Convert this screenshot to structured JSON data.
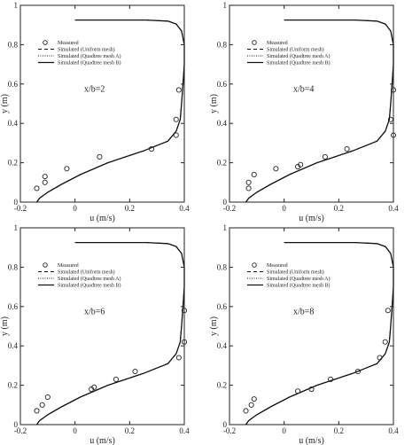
{
  "chart_data": [
    {
      "type": "line",
      "annotation": "x/b=2",
      "xlabel": "u (m/s)",
      "ylabel": "y (m)",
      "xlim": [
        -0.2,
        0.4
      ],
      "ylim": [
        0,
        1
      ],
      "x_ticks": [
        "-0.2",
        "0",
        "0.2",
        "0.4"
      ],
      "y_ticks": [
        "0",
        "0.2",
        "0.4",
        "0.6",
        "0.8",
        "1"
      ],
      "legend": [
        "Measured",
        "Simulated (Uniform mesh)",
        "Simulated (Quadtree mesh A)",
        "Simulated (Quadtree mesh B)"
      ],
      "measured": [
        {
          "x": 0.38,
          "y": 0.57
        },
        {
          "x": 0.37,
          "y": 0.42
        },
        {
          "x": 0.37,
          "y": 0.34
        },
        {
          "x": 0.28,
          "y": 0.27
        },
        {
          "x": 0.09,
          "y": 0.23
        },
        {
          "x": -0.03,
          "y": 0.17
        },
        {
          "x": -0.11,
          "y": 0.13
        },
        {
          "x": -0.11,
          "y": 0.1
        },
        {
          "x": -0.14,
          "y": 0.07
        }
      ],
      "series": [
        {
          "name": "Simulated (Uniform mesh)",
          "x": [
            -0.14,
            -0.13,
            -0.1,
            -0.05,
            0.02,
            0.12,
            0.25,
            0.34,
            0.37,
            0.385,
            0.39,
            0.395,
            0.4,
            0.4,
            0.39,
            0.37,
            0.34,
            0.26,
            0.12,
            0.0
          ],
          "y": [
            0.0,
            0.02,
            0.05,
            0.09,
            0.14,
            0.2,
            0.26,
            0.31,
            0.36,
            0.42,
            0.5,
            0.6,
            0.7,
            0.8,
            0.87,
            0.905,
            0.92,
            0.925,
            0.925,
            0.925
          ]
        },
        {
          "name": "Simulated (Quadtree mesh A)",
          "x": [
            -0.14,
            -0.13,
            -0.1,
            -0.05,
            0.02,
            0.12,
            0.25,
            0.34,
            0.37,
            0.385,
            0.39,
            0.395,
            0.4,
            0.4,
            0.39,
            0.37,
            0.34,
            0.26,
            0.12,
            0.0
          ],
          "y": [
            0.0,
            0.02,
            0.05,
            0.09,
            0.14,
            0.2,
            0.26,
            0.31,
            0.36,
            0.42,
            0.5,
            0.6,
            0.7,
            0.8,
            0.87,
            0.905,
            0.92,
            0.925,
            0.925,
            0.925
          ]
        },
        {
          "name": "Simulated (Quadtree mesh B)",
          "x": [
            -0.14,
            -0.13,
            -0.1,
            -0.05,
            0.02,
            0.12,
            0.25,
            0.34,
            0.37,
            0.385,
            0.39,
            0.395,
            0.4,
            0.4,
            0.39,
            0.37,
            0.34,
            0.26,
            0.12,
            0.0
          ],
          "y": [
            0.0,
            0.02,
            0.05,
            0.09,
            0.14,
            0.2,
            0.26,
            0.31,
            0.36,
            0.42,
            0.5,
            0.6,
            0.7,
            0.8,
            0.87,
            0.905,
            0.92,
            0.925,
            0.925,
            0.925
          ]
        }
      ]
    },
    {
      "type": "line",
      "annotation": "x/b=4",
      "xlabel": "u (m/s)",
      "ylabel": "y (m)",
      "xlim": [
        -0.2,
        0.4
      ],
      "ylim": [
        0,
        1
      ],
      "x_ticks": [
        "-0.2",
        "0",
        "0.2",
        "0.4"
      ],
      "y_ticks": [
        "0",
        "0.2",
        "0.4",
        "0.6",
        "0.8",
        "1"
      ],
      "legend": [
        "Measured",
        "Simulated (Uniform mesh)",
        "Simulated (Quadtree mesh A)",
        "Simulated (Quadtree mesh B)"
      ],
      "measured": [
        {
          "x": 0.4,
          "y": 0.57
        },
        {
          "x": 0.39,
          "y": 0.42
        },
        {
          "x": 0.4,
          "y": 0.34
        },
        {
          "x": 0.23,
          "y": 0.27
        },
        {
          "x": 0.15,
          "y": 0.23
        },
        {
          "x": 0.06,
          "y": 0.19
        },
        {
          "x": 0.05,
          "y": 0.18
        },
        {
          "x": -0.03,
          "y": 0.17
        },
        {
          "x": -0.11,
          "y": 0.14
        },
        {
          "x": -0.13,
          "y": 0.1
        },
        {
          "x": -0.13,
          "y": 0.07
        }
      ],
      "series": [
        {
          "name": "Simulated (Uniform mesh)",
          "x": [
            -0.14,
            -0.13,
            -0.1,
            -0.05,
            0.02,
            0.12,
            0.25,
            0.34,
            0.37,
            0.385,
            0.39,
            0.395,
            0.4,
            0.4,
            0.39,
            0.37,
            0.34,
            0.26,
            0.12,
            0.0
          ],
          "y": [
            0.0,
            0.02,
            0.05,
            0.09,
            0.14,
            0.2,
            0.26,
            0.31,
            0.36,
            0.42,
            0.5,
            0.6,
            0.7,
            0.8,
            0.87,
            0.905,
            0.92,
            0.925,
            0.925,
            0.925
          ]
        },
        {
          "name": "Simulated (Quadtree mesh A)",
          "x": [
            -0.14,
            -0.13,
            -0.1,
            -0.05,
            0.02,
            0.12,
            0.25,
            0.34,
            0.37,
            0.385,
            0.39,
            0.395,
            0.4,
            0.4,
            0.39,
            0.37,
            0.34,
            0.26,
            0.12,
            0.0
          ],
          "y": [
            0.0,
            0.02,
            0.05,
            0.09,
            0.14,
            0.2,
            0.26,
            0.31,
            0.36,
            0.42,
            0.5,
            0.6,
            0.7,
            0.8,
            0.87,
            0.905,
            0.92,
            0.925,
            0.925,
            0.925
          ]
        },
        {
          "name": "Simulated (Quadtree mesh B)",
          "x": [
            -0.14,
            -0.13,
            -0.1,
            -0.05,
            0.02,
            0.12,
            0.25,
            0.34,
            0.37,
            0.385,
            0.39,
            0.395,
            0.4,
            0.4,
            0.39,
            0.37,
            0.34,
            0.26,
            0.12,
            0.0
          ],
          "y": [
            0.0,
            0.02,
            0.05,
            0.09,
            0.14,
            0.2,
            0.26,
            0.31,
            0.36,
            0.42,
            0.5,
            0.6,
            0.7,
            0.8,
            0.87,
            0.905,
            0.92,
            0.925,
            0.925,
            0.925
          ]
        }
      ]
    },
    {
      "type": "line",
      "annotation": "x/b=6",
      "xlabel": "u (m/s)",
      "ylabel": "y (m)",
      "xlim": [
        -0.2,
        0.4
      ],
      "ylim": [
        0,
        1
      ],
      "x_ticks": [
        "-0.2",
        "0",
        "0.2",
        "0.4"
      ],
      "y_ticks": [
        "0",
        "0.2",
        "0.4",
        "0.6",
        "0.8",
        "1"
      ],
      "legend": [
        "Measured",
        "Simulated (Uniform mesh)",
        "Simulated (Quadtree mesh A)",
        "Simulated (Quadtree mesh B)"
      ],
      "measured": [
        {
          "x": 0.4,
          "y": 0.58
        },
        {
          "x": 0.4,
          "y": 0.42
        },
        {
          "x": 0.38,
          "y": 0.34
        },
        {
          "x": 0.22,
          "y": 0.27
        },
        {
          "x": 0.15,
          "y": 0.23
        },
        {
          "x": 0.07,
          "y": 0.19
        },
        {
          "x": 0.06,
          "y": 0.18
        },
        {
          "x": -0.1,
          "y": 0.14
        },
        {
          "x": -0.12,
          "y": 0.1
        },
        {
          "x": -0.14,
          "y": 0.07
        }
      ],
      "series": [
        {
          "name": "Simulated (Uniform mesh)",
          "x": [
            -0.14,
            -0.13,
            -0.1,
            -0.05,
            0.02,
            0.12,
            0.25,
            0.34,
            0.37,
            0.385,
            0.39,
            0.395,
            0.4,
            0.4,
            0.39,
            0.37,
            0.34,
            0.26,
            0.12,
            0.0
          ],
          "y": [
            0.0,
            0.02,
            0.05,
            0.09,
            0.14,
            0.2,
            0.26,
            0.31,
            0.36,
            0.42,
            0.5,
            0.6,
            0.7,
            0.8,
            0.87,
            0.905,
            0.92,
            0.925,
            0.925,
            0.925
          ]
        },
        {
          "name": "Simulated (Quadtree mesh A)",
          "x": [
            -0.14,
            -0.13,
            -0.1,
            -0.05,
            0.02,
            0.12,
            0.25,
            0.34,
            0.37,
            0.385,
            0.39,
            0.395,
            0.4,
            0.4,
            0.39,
            0.37,
            0.34,
            0.26,
            0.12,
            0.0
          ],
          "y": [
            0.0,
            0.02,
            0.05,
            0.09,
            0.14,
            0.2,
            0.26,
            0.31,
            0.36,
            0.42,
            0.5,
            0.6,
            0.7,
            0.8,
            0.87,
            0.905,
            0.92,
            0.925,
            0.925,
            0.925
          ]
        },
        {
          "name": "Simulated (Quadtree mesh B)",
          "x": [
            -0.14,
            -0.13,
            -0.1,
            -0.05,
            0.02,
            0.12,
            0.25,
            0.34,
            0.37,
            0.385,
            0.39,
            0.395,
            0.4,
            0.4,
            0.39,
            0.37,
            0.34,
            0.26,
            0.12,
            0.0
          ],
          "y": [
            0.0,
            0.02,
            0.05,
            0.09,
            0.14,
            0.2,
            0.26,
            0.31,
            0.36,
            0.42,
            0.5,
            0.6,
            0.7,
            0.8,
            0.87,
            0.905,
            0.92,
            0.925,
            0.925,
            0.925
          ]
        }
      ]
    },
    {
      "type": "line",
      "annotation": "x/b=8",
      "xlabel": "u (m/s)",
      "ylabel": "y (m)",
      "xlim": [
        -0.2,
        0.4
      ],
      "ylim": [
        0,
        1
      ],
      "x_ticks": [
        "-0.2",
        "0",
        "0.2",
        "0.4"
      ],
      "y_ticks": [
        "0",
        "0.2",
        "0.4",
        "0.6",
        "0.8",
        "1"
      ],
      "legend": [
        "Measured",
        "Simulated (Uniform mesh)",
        "Simulated (Quadtree mesh A)",
        "Simulated (Quadtree mesh B)"
      ],
      "measured": [
        {
          "x": 0.38,
          "y": 0.58
        },
        {
          "x": 0.37,
          "y": 0.42
        },
        {
          "x": 0.35,
          "y": 0.34
        },
        {
          "x": 0.27,
          "y": 0.27
        },
        {
          "x": 0.17,
          "y": 0.23
        },
        {
          "x": 0.1,
          "y": 0.18
        },
        {
          "x": 0.05,
          "y": 0.17
        },
        {
          "x": -0.11,
          "y": 0.13
        },
        {
          "x": -0.12,
          "y": 0.1
        },
        {
          "x": -0.14,
          "y": 0.07
        }
      ],
      "series": [
        {
          "name": "Simulated (Uniform mesh)",
          "x": [
            -0.14,
            -0.13,
            -0.1,
            -0.05,
            0.02,
            0.12,
            0.25,
            0.34,
            0.37,
            0.385,
            0.39,
            0.395,
            0.4,
            0.4,
            0.39,
            0.37,
            0.34,
            0.26,
            0.12,
            0.0
          ],
          "y": [
            0.0,
            0.02,
            0.05,
            0.09,
            0.14,
            0.2,
            0.26,
            0.31,
            0.36,
            0.42,
            0.5,
            0.6,
            0.7,
            0.8,
            0.87,
            0.905,
            0.92,
            0.925,
            0.925,
            0.925
          ]
        },
        {
          "name": "Simulated (Quadtree mesh A)",
          "x": [
            -0.14,
            -0.13,
            -0.1,
            -0.05,
            0.02,
            0.12,
            0.25,
            0.34,
            0.37,
            0.385,
            0.39,
            0.395,
            0.4,
            0.4,
            0.39,
            0.37,
            0.34,
            0.26,
            0.12,
            0.0
          ],
          "y": [
            0.0,
            0.02,
            0.05,
            0.09,
            0.14,
            0.2,
            0.26,
            0.31,
            0.36,
            0.42,
            0.5,
            0.6,
            0.7,
            0.8,
            0.87,
            0.905,
            0.92,
            0.925,
            0.925,
            0.925
          ]
        },
        {
          "name": "Simulated (Quadtree mesh B)",
          "x": [
            -0.14,
            -0.13,
            -0.1,
            -0.05,
            0.02,
            0.12,
            0.25,
            0.34,
            0.37,
            0.385,
            0.39,
            0.395,
            0.4,
            0.4,
            0.39,
            0.37,
            0.34,
            0.26,
            0.12,
            0.0
          ],
          "y": [
            0.0,
            0.02,
            0.05,
            0.09,
            0.14,
            0.2,
            0.26,
            0.31,
            0.36,
            0.42,
            0.5,
            0.6,
            0.7,
            0.8,
            0.87,
            0.905,
            0.92,
            0.925,
            0.925,
            0.925
          ]
        }
      ]
    }
  ]
}
